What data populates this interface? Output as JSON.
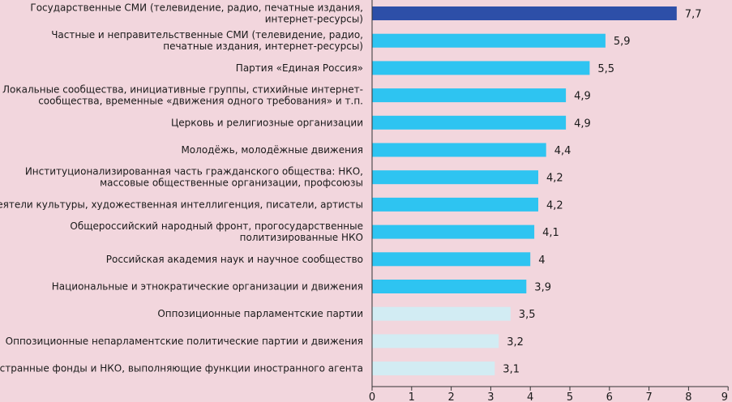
{
  "chart_data": {
    "type": "bar",
    "orientation": "horizontal",
    "title": "",
    "xlabel": "",
    "ylabel": "",
    "xlim": [
      0,
      9
    ],
    "x_ticks": [
      "0",
      "1",
      "2",
      "3",
      "4",
      "5",
      "6",
      "7",
      "8",
      "9"
    ],
    "grid": false,
    "categories": [
      [
        "Государственные СМИ (телевидение, радио, печатные издания,",
        "интернет-ресурсы)"
      ],
      [
        "Частные и неправительственные СМИ (телевидение, радио,",
        "печатные издания, интернет-ресурсы)"
      ],
      [
        "Партия «Единая Россия»"
      ],
      [
        "Локальные сообщества, инициативные группы, стихийные интернет-",
        "сообщества, временные «движения одного требования» и т.п."
      ],
      [
        "Церковь и религиозные организации"
      ],
      [
        "Молодёжь, молодёжные движения"
      ],
      [
        "Институционализированная часть гражданского общества: НКО,",
        "массовые общественные организации, профсоюзы"
      ],
      [
        "Деятели культуры, художественная интеллигенция, писатели, артисты"
      ],
      [
        "Общероссийский народный фронт, прогосударственные",
        "политизированные НКО"
      ],
      [
        "Российская академия наук и научное сообщество"
      ],
      [
        "Национальные и этнократические организации и движения"
      ],
      [
        "Оппозиционные парламентские партии"
      ],
      [
        "Оппозиционные непарламентские политические партии и движения"
      ],
      [
        "Иностранные фонды и НКО, выполняющие функции иностранного агента"
      ]
    ],
    "values": [
      7.7,
      5.9,
      5.5,
      4.9,
      4.9,
      4.4,
      4.2,
      4.2,
      4.1,
      4.0,
      3.9,
      3.5,
      3.2,
      3.1
    ],
    "value_labels": [
      "7,7",
      "5,9",
      "5,5",
      "4,9",
      "4,9",
      "4,4",
      "4,2",
      "4,2",
      "4,1",
      "4",
      "3,9",
      "3,5",
      "3,2",
      "3,1"
    ],
    "colors": [
      "#2d4fa8",
      "#2ec4f1",
      "#2ec4f1",
      "#2ec4f1",
      "#2ec4f1",
      "#2ec4f1",
      "#2ec4f1",
      "#2ec4f1",
      "#2ec4f1",
      "#2ec4f1",
      "#2ec4f1",
      "#d2ecf3",
      "#d2ecf3",
      "#d2ecf3"
    ],
    "axis_color": "#333333"
  }
}
